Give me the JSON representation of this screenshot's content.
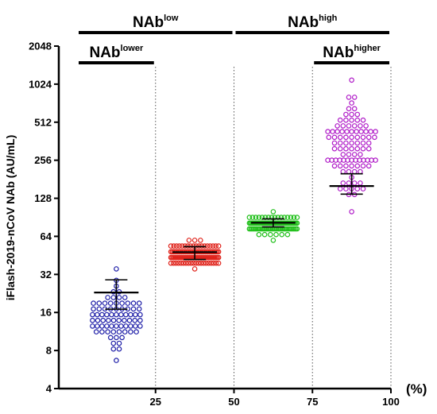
{
  "chart_data": {
    "type": "scatter",
    "ylabel": "iFlash-2019-nCoV NAb (AU/mL)",
    "yscale": "log2",
    "ylim": [
      4,
      2048
    ],
    "yticks": [
      "4",
      "8",
      "16",
      "32",
      "64",
      "128",
      "256",
      "512",
      "1024",
      "2048"
    ],
    "xlim": [
      0,
      100
    ],
    "xticks": [
      "25",
      "50",
      "75",
      "100"
    ],
    "xunit": "(%)",
    "divider_lines_at_percent": [
      25,
      50,
      75,
      100
    ],
    "grid": false,
    "legend": "none",
    "brackets": [
      {
        "base": "NAb",
        "sup": "low",
        "x_range": [
          0,
          50
        ],
        "tier": "top"
      },
      {
        "base": "NAb",
        "sup": "high",
        "x_range": [
          50,
          100
        ],
        "tier": "top"
      },
      {
        "base": "NAb",
        "sup": "lower",
        "x_range": [
          0,
          25
        ],
        "tier": "second"
      },
      {
        "base": "NAb",
        "sup": "higher",
        "x_range": [
          75,
          100
        ],
        "tier": "second"
      }
    ],
    "series": [
      {
        "group": "0-25%",
        "color": "#1f1fa8",
        "x_center": 12.5,
        "y_min": 6.8,
        "y_max": 34,
        "median": 23,
        "q1": 17,
        "q3": 29,
        "n": 75
      },
      {
        "group": "25-50%",
        "color": "#e0241c",
        "x_center": 37.5,
        "y_min": 35,
        "y_max": 62,
        "median": 48,
        "q1": 42,
        "q3": 53,
        "n": 120
      },
      {
        "group": "50-75%",
        "color": "#22c01c",
        "x_center": 62.5,
        "y_min": 62,
        "y_max": 100,
        "median": 82,
        "q1": 76,
        "q3": 88,
        "n": 105
      },
      {
        "group": "75-100%",
        "color": "#b01cc8",
        "x_center": 87.5,
        "y_min": 105,
        "y_max": 1100,
        "median": 160,
        "q1": 138,
        "q3": 200,
        "n": 95
      }
    ]
  }
}
